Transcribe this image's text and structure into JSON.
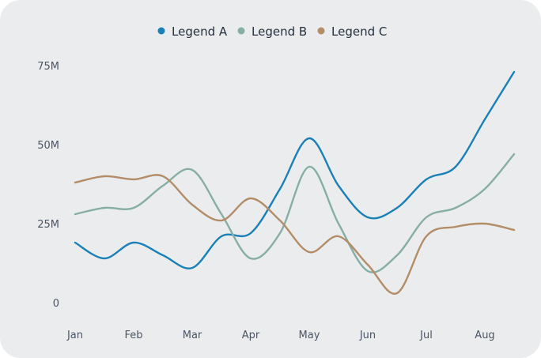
{
  "chart_data": {
    "type": "line",
    "categories": [
      "Jan",
      "Feb",
      "Mar",
      "Apr",
      "May",
      "Jun",
      "Jul",
      "Aug"
    ],
    "x": [
      0,
      0.5,
      1,
      1.5,
      2,
      2.5,
      3,
      3.5,
      4,
      4.5,
      5,
      5.5,
      6,
      6.5,
      7,
      7.5
    ],
    "ylim": [
      0,
      75
    ],
    "yticks": [
      {
        "value": 0,
        "label": "0"
      },
      {
        "value": 25,
        "label": "25M"
      },
      {
        "value": 50,
        "label": "50M"
      },
      {
        "value": 75,
        "label": "75M"
      }
    ],
    "grid": false,
    "legend_position": "top-center",
    "series": [
      {
        "name": "Legend A",
        "color": "#1a80b6",
        "values": [
          19,
          14,
          19,
          15,
          11,
          21,
          22,
          36,
          52,
          37,
          27,
          30,
          39,
          43,
          58,
          73
        ]
      },
      {
        "name": "Legend B",
        "color": "#86aea5",
        "values": [
          28,
          30,
          30,
          37,
          42,
          28,
          14,
          22,
          43,
          25,
          10,
          15,
          27,
          30,
          36,
          47
        ]
      },
      {
        "name": "Legend C",
        "color": "#b38d68",
        "values": [
          38,
          40,
          39,
          40,
          31,
          26,
          33,
          26,
          16,
          21,
          12,
          3,
          21,
          24,
          25,
          23
        ]
      }
    ]
  }
}
